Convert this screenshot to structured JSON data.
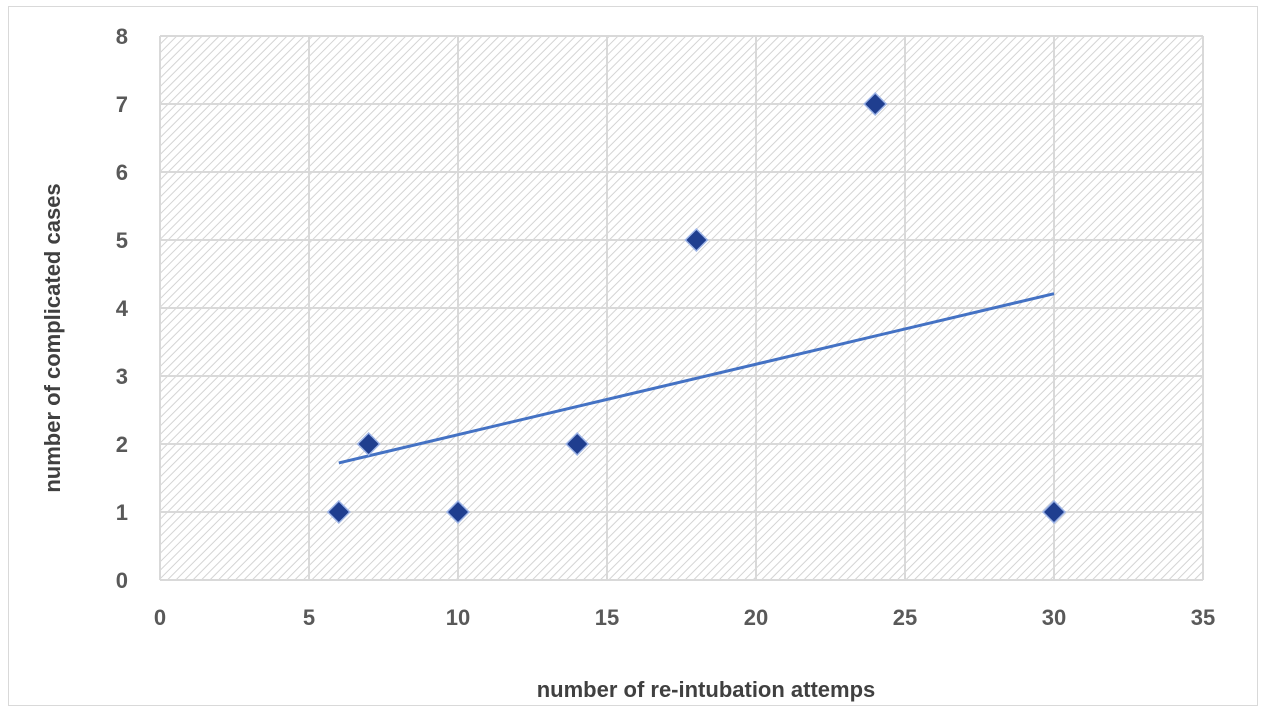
{
  "chart_data": {
    "type": "scatter",
    "title": "",
    "xlabel": "number of re-intubation attemps",
    "ylabel": "number of complicated cases",
    "xlim": [
      0,
      35
    ],
    "ylim": [
      0,
      8
    ],
    "x_ticks": [
      "0",
      "5",
      "10",
      "15",
      "20",
      "25",
      "30",
      "35"
    ],
    "y_ticks": [
      "0",
      "1",
      "2",
      "3",
      "4",
      "5",
      "6",
      "7",
      "8"
    ],
    "grid": true,
    "legend": "none",
    "marker": "diamond",
    "series": [
      {
        "points": [
          {
            "x": 6,
            "y": 1
          },
          {
            "x": 7,
            "y": 2
          },
          {
            "x": 10,
            "y": 1
          },
          {
            "x": 14,
            "y": 2
          },
          {
            "x": 18,
            "y": 5
          },
          {
            "x": 24,
            "y": 7
          },
          {
            "x": 30,
            "y": 1
          }
        ],
        "color": "#1f3e8f"
      }
    ],
    "trendline": {
      "type": "linear",
      "x_range": [
        6,
        30
      ],
      "color": "#4472c4"
    }
  }
}
